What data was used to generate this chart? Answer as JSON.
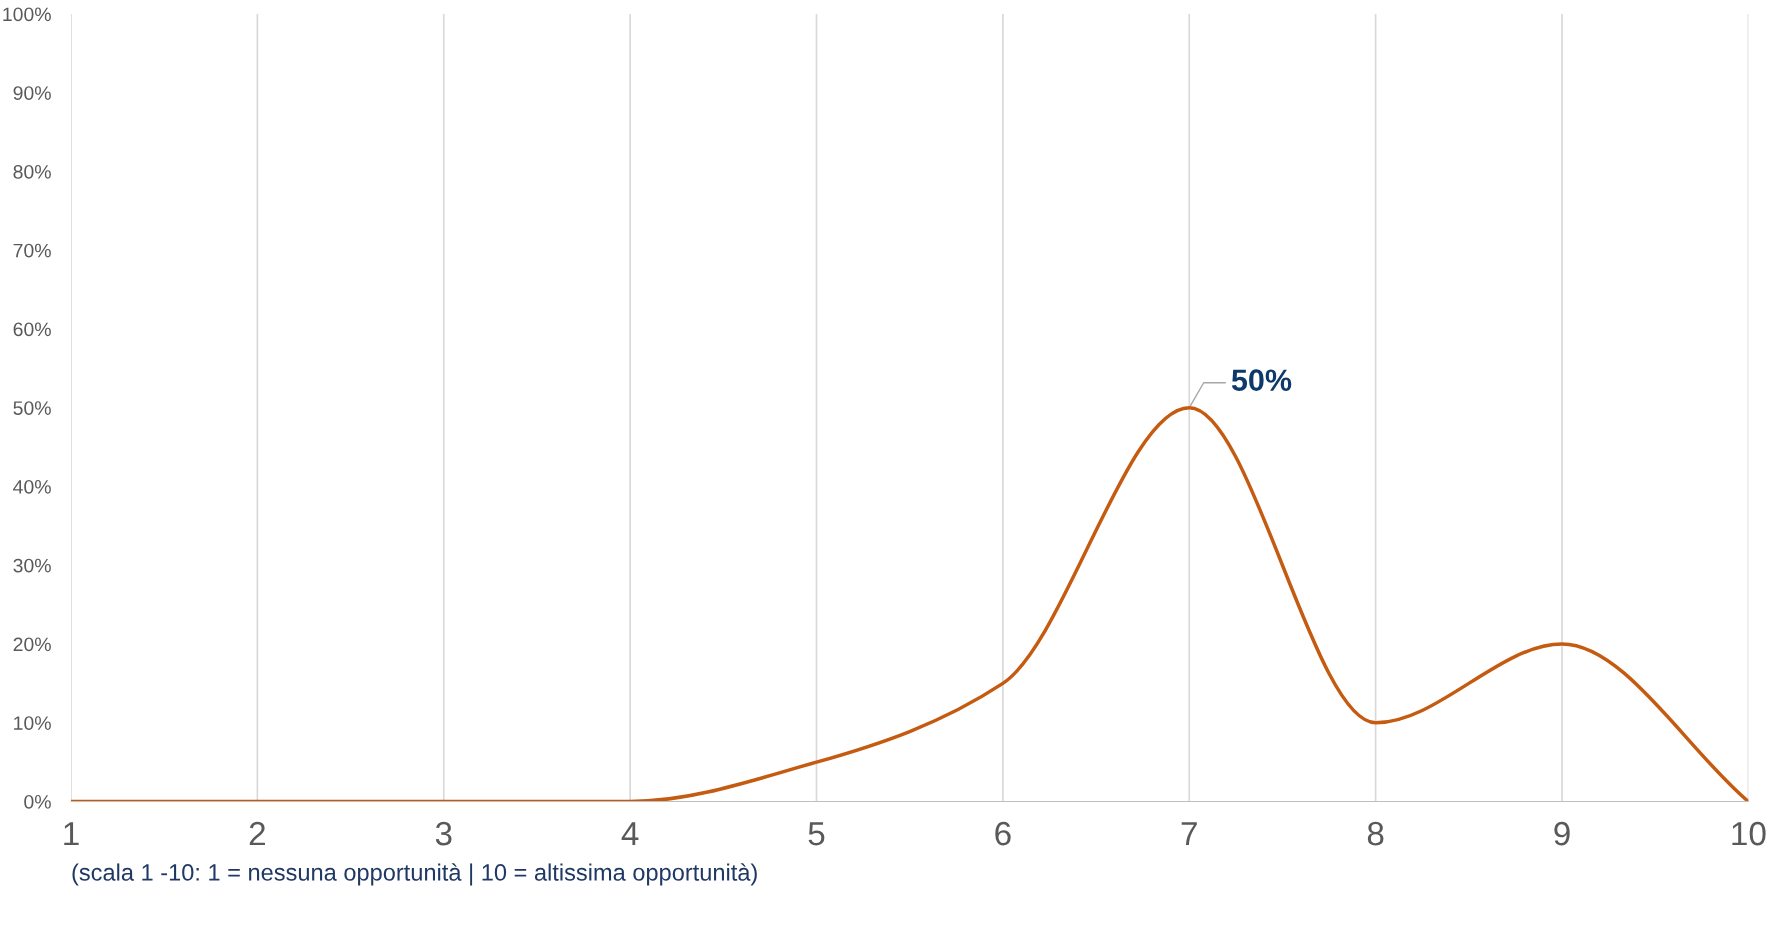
{
  "chart_data": {
    "type": "line",
    "xlabel": "(scala 1 -10: 1 = nessuna opportunità | 10 = altissima opportunità)",
    "x": [
      1,
      2,
      3,
      4,
      5,
      6,
      7,
      8,
      9,
      10
    ],
    "series": [
      {
        "color": "#c55a11",
        "values": [
          0,
          0,
          0,
          0,
          5,
          15,
          50,
          10,
          20,
          0
        ],
        "value_labels": [
          null,
          null,
          null,
          null,
          null,
          null,
          "50%",
          null,
          null,
          null
        ]
      }
    ],
    "xlim": [
      1,
      10
    ],
    "xticks": [
      1,
      2,
      3,
      4,
      5,
      6,
      7,
      8,
      9,
      10
    ],
    "ylim": [
      0,
      100
    ],
    "yticks": [
      {
        "value": 0,
        "label": "0%"
      },
      {
        "value": 10,
        "label": "10%"
      },
      {
        "value": 20,
        "label": "20%"
      },
      {
        "value": 30,
        "label": "30%"
      },
      {
        "value": 40,
        "label": "40%"
      },
      {
        "value": 50,
        "label": "50%"
      },
      {
        "value": 60,
        "label": "60%"
      },
      {
        "value": 70,
        "label": "70%"
      },
      {
        "value": 80,
        "label": "80%"
      },
      {
        "value": 90,
        "label": "90%"
      },
      {
        "value": 100,
        "label": "100%"
      }
    ],
    "grid": "x",
    "marker": "none",
    "line_style": "solid"
  }
}
